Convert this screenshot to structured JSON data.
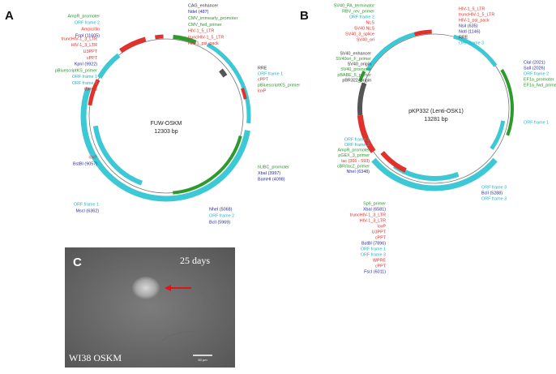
{
  "panel_a": {
    "letter": "A",
    "name": "FUW-OSKM",
    "size": "12303 bp",
    "labels": {
      "top_left": [
        {
          "t": "AmpR_promoter",
          "c": "green"
        },
        {
          "t": "ORF frame 2",
          "c": "cyan"
        },
        {
          "t": "Ampicillin",
          "c": "red"
        },
        {
          "t": "FspI (11605)",
          "c": "blue"
        }
      ],
      "left": [
        {
          "t": "truncHIV-1_3_LTR",
          "c": "red"
        },
        {
          "t": "HIV-1_3_LTR",
          "c": "red"
        },
        {
          "t": "U3PPT",
          "c": "red"
        },
        {
          "t": "cPPT",
          "c": "red"
        },
        {
          "t": "KpnI (9922)",
          "c": "blue"
        },
        {
          "t": "pBluescriptKS_primer",
          "c": "green"
        },
        {
          "t": "ORF frame 1",
          "c": "cyan"
        },
        {
          "t": "ORF frame 3",
          "c": "cyan"
        },
        {
          "t": "WPRE",
          "c": "red"
        }
      ],
      "left_bottom": [
        {
          "t": "loxP",
          "c": "red"
        },
        {
          "t": "BstBI (9057)",
          "c": "blue"
        }
      ],
      "top_right": [
        {
          "t": "CAG_enhancer",
          "c": "black"
        },
        {
          "t": "NdeI (487)",
          "c": "blue"
        },
        {
          "t": "CMV_immearly_promoter",
          "c": "green"
        },
        {
          "t": "CMV_fwd_primer",
          "c": "green"
        },
        {
          "t": "HIV-1_5_LTR",
          "c": "red"
        },
        {
          "t": "truncHIV-1_5_LTR",
          "c": "red"
        },
        {
          "t": "HIV-1_psi_pack",
          "c": "red"
        }
      ],
      "right": [
        {
          "t": "RRE",
          "c": "black"
        },
        {
          "t": "ORF frame 1",
          "c": "cyan"
        },
        {
          "t": "cPPT",
          "c": "red"
        },
        {
          "t": "pBluescriptKS_primer",
          "c": "green"
        },
        {
          "t": "loxP",
          "c": "red"
        }
      ],
      "right_bottom": [
        {
          "t": "hUBC_promoter",
          "c": "green"
        },
        {
          "t": "XbaI (3997)",
          "c": "blue"
        },
        {
          "t": "BamHI (4098)",
          "c": "blue"
        }
      ],
      "bottom": [
        {
          "t": "NheI (5068)",
          "c": "blue"
        },
        {
          "t": "ORF frame 2",
          "c": "cyan"
        },
        {
          "t": "BclI (5969)",
          "c": "blue"
        }
      ],
      "bottom_left": [
        {
          "t": "ORF frame 1",
          "c": "cyan"
        },
        {
          "t": "MscI (6362)",
          "c": "blue"
        }
      ]
    }
  },
  "panel_b": {
    "letter": "B",
    "name": "pKP332 (Lenti-OSK1)",
    "size": "13281 bp",
    "labels": {
      "top_left": [
        {
          "t": "SV40_PA_terminator",
          "c": "green"
        },
        {
          "t": "RBV_rev_primer",
          "c": "green"
        },
        {
          "t": "ORF frame 2",
          "c": "cyan"
        },
        {
          "t": "NLS",
          "c": "red"
        },
        {
          "t": "SV40 NLS",
          "c": "red"
        },
        {
          "t": "SV40_3_splice",
          "c": "red"
        },
        {
          "t": "SV40_ori",
          "c": "red"
        }
      ],
      "top_right": [
        {
          "t": "HIV-1_5_LTR",
          "c": "red"
        },
        {
          "t": "truncHIV-1_5_LTR",
          "c": "red"
        },
        {
          "t": "HIV-1_psi_pack",
          "c": "red"
        },
        {
          "t": "NsiI (635)",
          "c": "blue"
        },
        {
          "t": "NotI (1146)",
          "c": "blue"
        },
        {
          "t": "RRE",
          "c": "black"
        },
        {
          "t": "ORF frame 3",
          "c": "cyan"
        }
      ],
      "left": [
        {
          "t": "SV40_enhancer",
          "c": "black"
        },
        {
          "t": "SV40ori_F_primer",
          "c": "green"
        },
        {
          "t": "SV40_origin",
          "c": "black"
        },
        {
          "t": "SV40_promoter",
          "c": "green"
        },
        {
          "t": "pBABE_5_primer",
          "c": "green"
        },
        {
          "t": "pBR322_origin",
          "c": "black"
        }
      ],
      "right": [
        {
          "t": "ClaI (2021)",
          "c": "blue"
        },
        {
          "t": "SalI (2026)",
          "c": "blue"
        },
        {
          "t": "ORF frame 2",
          "c": "cyan"
        },
        {
          "t": "EF1a_promoter",
          "c": "green"
        },
        {
          "t": "EF1a_fwd_primer",
          "c": "green"
        }
      ],
      "right_mid": [
        {
          "t": "ORF frame 1",
          "c": "cyan"
        }
      ],
      "left_bottom": [
        {
          "t": "ORF frame 1",
          "c": "cyan"
        },
        {
          "t": "ORF frame 2",
          "c": "cyan"
        },
        {
          "t": "AmpR_promoter",
          "c": "green"
        },
        {
          "t": "pGEX_3_primer",
          "c": "green"
        },
        {
          "t": "lac (366 - 593)",
          "c": "red"
        },
        {
          "t": "cBR/lacZ_primer",
          "c": "green"
        },
        {
          "t": "NheI (6348)",
          "c": "blue"
        }
      ],
      "bottom": [
        {
          "t": "Sp6_primer",
          "c": "green"
        },
        {
          "t": "XbaI (6581)",
          "c": "blue"
        },
        {
          "t": "truncHIV-1_3_LTR",
          "c": "red"
        },
        {
          "t": "HIV-1_3_LTR",
          "c": "red"
        },
        {
          "t": "loxP",
          "c": "red"
        },
        {
          "t": "U3PPT",
          "c": "red"
        },
        {
          "t": "cPPT",
          "c": "red"
        },
        {
          "t": "BstBI (7896)",
          "c": "blue"
        },
        {
          "t": "ORF frame 1",
          "c": "cyan"
        },
        {
          "t": "ORF frame 3",
          "c": "cyan"
        },
        {
          "t": "WPRE",
          "c": "red"
        },
        {
          "t": "cPPT",
          "c": "red"
        },
        {
          "t": "FscI (6011)",
          "c": "blue"
        }
      ],
      "bottom_right": [
        {
          "t": "ORF frame 3",
          "c": "cyan"
        },
        {
          "t": "BclI (5288)",
          "c": "blue"
        },
        {
          "t": "ORF frame 3",
          "c": "cyan"
        }
      ]
    }
  },
  "panel_c": {
    "letter": "C",
    "time": "25 days",
    "sample": "WI38 OSKM",
    "scale": "50 µm"
  }
}
